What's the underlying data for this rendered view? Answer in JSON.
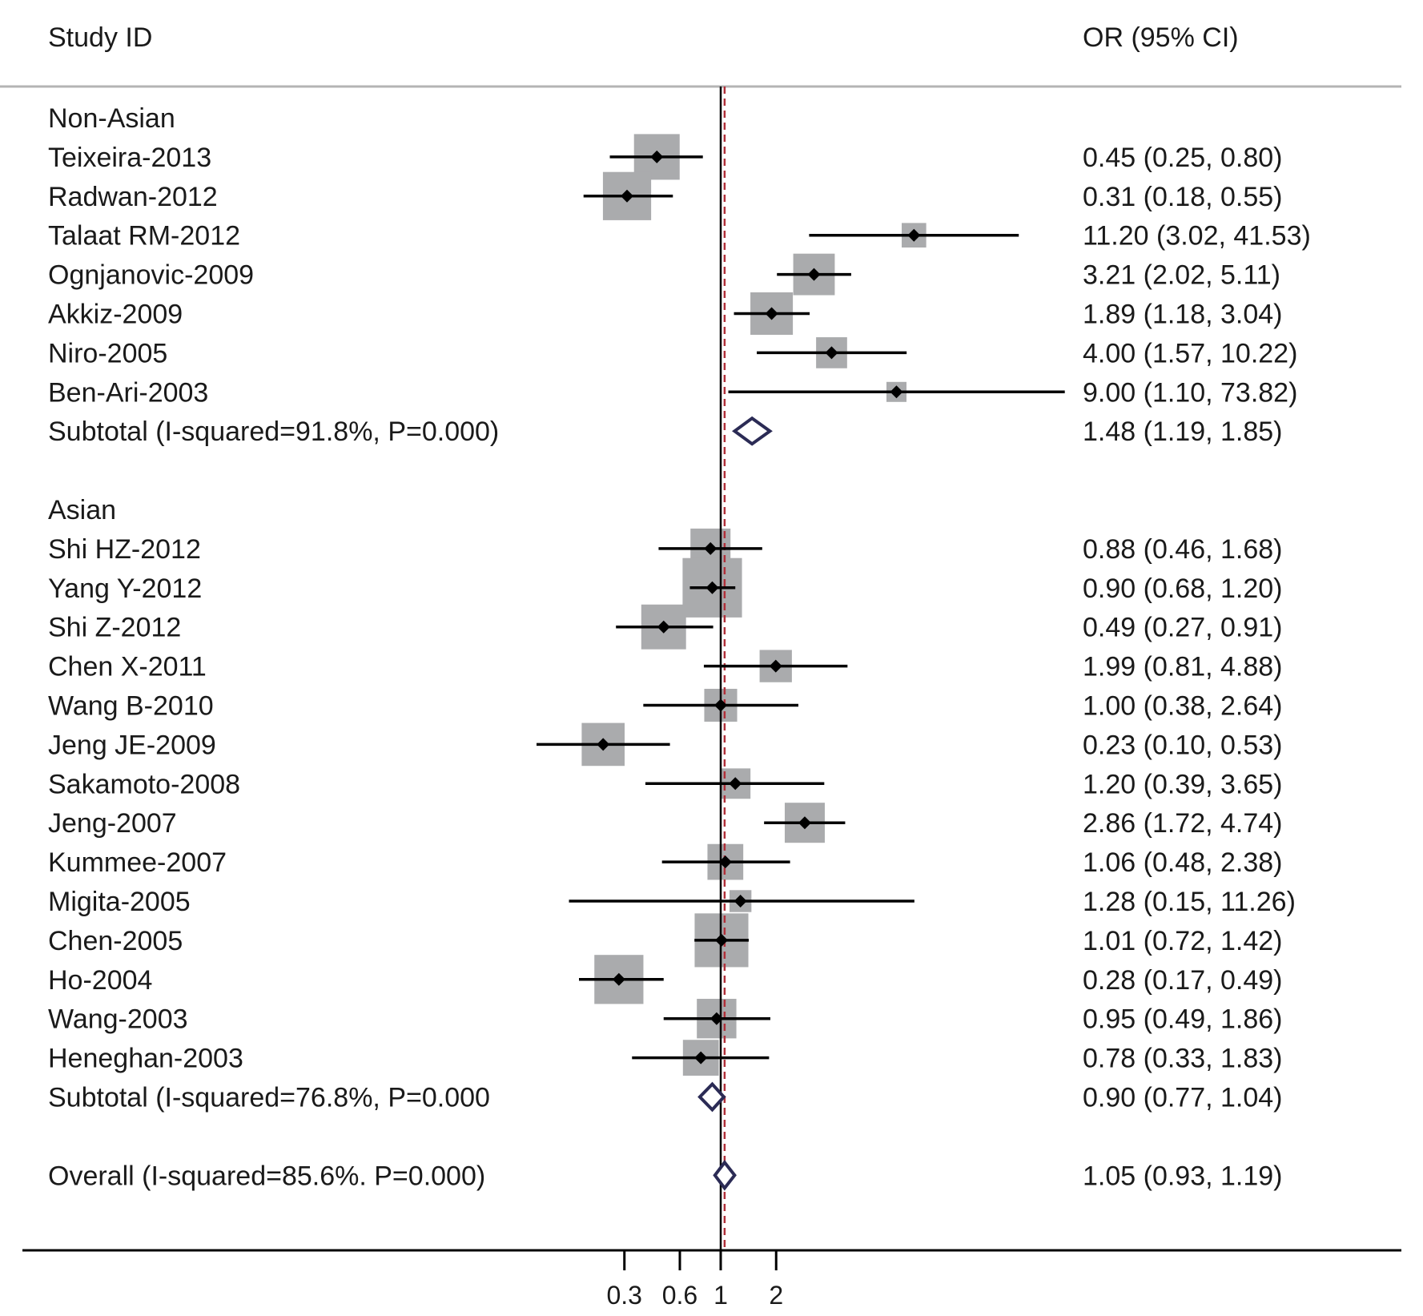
{
  "chart_data": {
    "type": "forest",
    "header": {
      "left": "Study ID",
      "right": "OR (95% CI)"
    },
    "x_scale": "log",
    "null_value": 1,
    "xticks": [
      0.3,
      0.6,
      1,
      2
    ],
    "xtick_labels": [
      "0.3",
      "0.6",
      "1",
      "2"
    ],
    "colors": {
      "box": "#aaabad",
      "point": "#000000",
      "diamond": "#2b2b55",
      "null_line": "#000000",
      "overall_line": "#b0303a",
      "rule": "#b4b4b4"
    },
    "rows": [
      {
        "kind": "group",
        "label": "Non-Asian"
      },
      {
        "kind": "study",
        "label": "Teixeira-2013",
        "or": 0.45,
        "lo": 0.25,
        "hi": 0.8,
        "ci_text": "0.45 (0.25, 0.80)",
        "weight": 5.2
      },
      {
        "kind": "study",
        "label": "Radwan-2012",
        "or": 0.31,
        "lo": 0.18,
        "hi": 0.55,
        "ci_text": "0.31 (0.18, 0.55)",
        "weight": 5.8
      },
      {
        "kind": "study",
        "label": "Talaat RM-2012",
        "or": 11.2,
        "lo": 3.02,
        "hi": 41.53,
        "ci_text": "11.20 (3.02, 41.53)",
        "weight": 1.5
      },
      {
        "kind": "study",
        "label": "Ognjanovic-2009",
        "or": 3.21,
        "lo": 2.02,
        "hi": 5.11,
        "ci_text": "3.21 (2.02, 5.11)",
        "weight": 4.3
      },
      {
        "kind": "study",
        "label": "Akkiz-2009",
        "or": 1.89,
        "lo": 1.18,
        "hi": 3.04,
        "ci_text": "1.89 (1.18, 3.04)",
        "weight": 4.5
      },
      {
        "kind": "study",
        "label": "Niro-2005",
        "or": 4.0,
        "lo": 1.57,
        "hi": 10.22,
        "ci_text": "4.00 (1.57, 10.22)",
        "weight": 2.4
      },
      {
        "kind": "study",
        "label": "Ben-Ari-2003",
        "or": 9.0,
        "lo": 1.1,
        "hi": 73.82,
        "ci_text": "9.00 (1.10, 73.82)",
        "weight": 1.0
      },
      {
        "kind": "subtotal",
        "label": "Subtotal (I-squared=91.8%, P=0.000)",
        "or": 1.48,
        "lo": 1.19,
        "hi": 1.85,
        "ci_text": "1.48 (1.19, 1.85)"
      },
      {
        "kind": "spacer"
      },
      {
        "kind": "group",
        "label": "Asian"
      },
      {
        "kind": "study",
        "label": "Shi HZ-2012",
        "or": 0.88,
        "lo": 0.46,
        "hi": 1.68,
        "ci_text": "0.88 (0.46, 1.68)",
        "weight": 4.0
      },
      {
        "kind": "study",
        "label": "Yang Y-2012",
        "or": 0.9,
        "lo": 0.68,
        "hi": 1.2,
        "ci_text": "0.90 (0.68, 1.20)",
        "weight": 8.8
      },
      {
        "kind": "study",
        "label": "Shi Z-2012",
        "or": 0.49,
        "lo": 0.27,
        "hi": 0.91,
        "ci_text": "0.49 (0.27, 0.91)",
        "weight": 5.0
      },
      {
        "kind": "study",
        "label": "Chen X-2011",
        "or": 1.99,
        "lo": 0.81,
        "hi": 4.88,
        "ci_text": "1.99 (0.81, 4.88)",
        "weight": 2.6
      },
      {
        "kind": "study",
        "label": "Wang B-2010",
        "or": 1.0,
        "lo": 0.38,
        "hi": 2.64,
        "ci_text": "1.00 (0.38, 2.64)",
        "weight": 2.7
      },
      {
        "kind": "study",
        "label": "Jeng JE-2009",
        "or": 0.23,
        "lo": 0.1,
        "hi": 0.53,
        "ci_text": "0.23 (0.10, 0.53)",
        "weight": 4.6
      },
      {
        "kind": "study",
        "label": "Sakamoto-2008",
        "or": 1.2,
        "lo": 0.39,
        "hi": 3.65,
        "ci_text": "1.20 (0.39, 3.65)",
        "weight": 2.3
      },
      {
        "kind": "study",
        "label": "Jeng-2007",
        "or": 2.86,
        "lo": 1.72,
        "hi": 4.74,
        "ci_text": "2.86 (1.72, 4.74)",
        "weight": 4.0
      },
      {
        "kind": "study",
        "label": "Kummee-2007",
        "or": 1.06,
        "lo": 0.48,
        "hi": 2.38,
        "ci_text": "1.06 (0.48, 2.38)",
        "weight": 3.2
      },
      {
        "kind": "study",
        "label": "Migita-2005",
        "or": 1.28,
        "lo": 0.15,
        "hi": 11.26,
        "ci_text": "1.28 (0.15, 11.26)",
        "weight": 1.2
      },
      {
        "kind": "study",
        "label": "Chen-2005",
        "or": 1.01,
        "lo": 0.72,
        "hi": 1.42,
        "ci_text": "1.01 (0.72, 1.42)",
        "weight": 7.2
      },
      {
        "kind": "study",
        "label": "Ho-2004",
        "or": 0.28,
        "lo": 0.17,
        "hi": 0.49,
        "ci_text": "0.28 (0.17, 0.49)",
        "weight": 6.0
      },
      {
        "kind": "study",
        "label": "Wang-2003",
        "or": 0.95,
        "lo": 0.49,
        "hi": 1.86,
        "ci_text": "0.95 (0.49, 1.86)",
        "weight": 3.9
      },
      {
        "kind": "study",
        "label": "Heneghan-2003",
        "or": 0.78,
        "lo": 0.33,
        "hi": 1.83,
        "ci_text": "0.78 (0.33, 1.83)",
        "weight": 3.2
      },
      {
        "kind": "subtotal",
        "label": "Subtotal (I-squared=76.8%, P=0.000",
        "or": 0.9,
        "lo": 0.77,
        "hi": 1.04,
        "ci_text": "0.90 (0.77, 1.04)"
      },
      {
        "kind": "spacer"
      },
      {
        "kind": "overall",
        "label": "Overall (I-squared=85.6%. P=0.000)",
        "or": 1.05,
        "lo": 0.93,
        "hi": 1.19,
        "ci_text": "1.05 (0.93, 1.19)"
      }
    ]
  }
}
